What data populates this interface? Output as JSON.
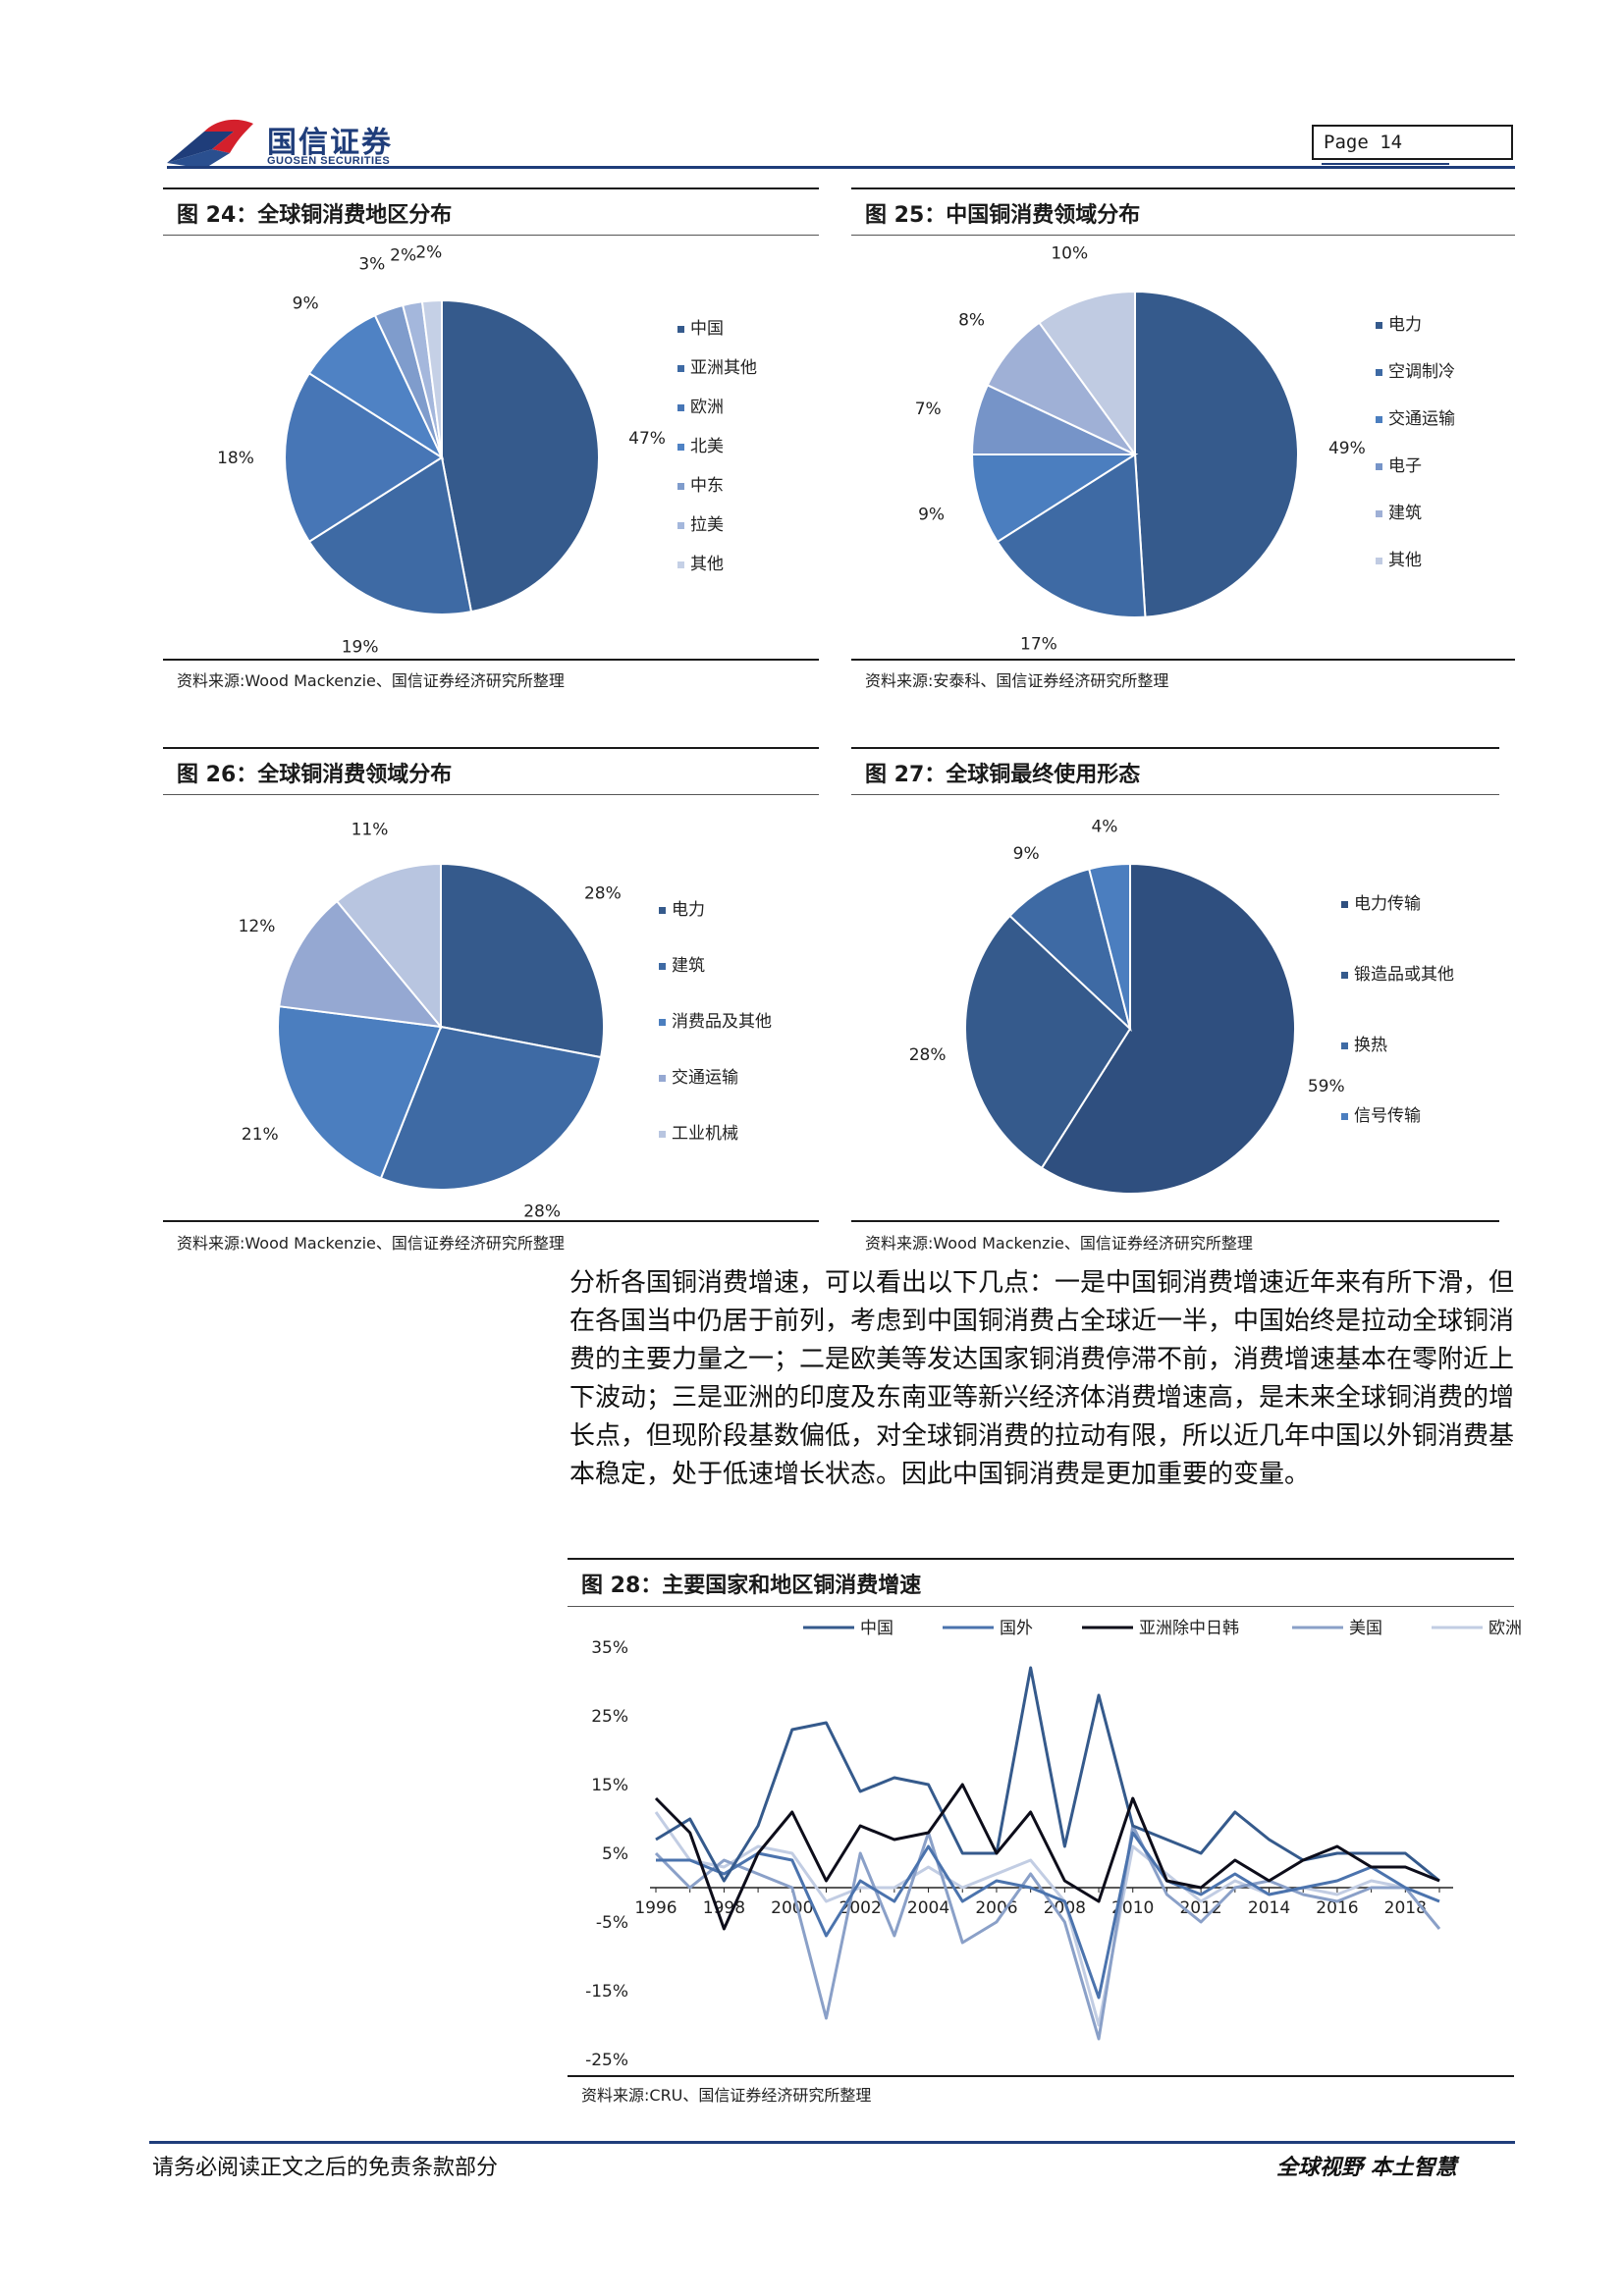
{
  "header": {
    "logo_cn": "国信证券",
    "logo_en": "GUOSEN SECURITIES",
    "page_label": "Page  14"
  },
  "colors": {
    "brand_blue": "#1f3d7a",
    "logo_red": "#d4202c",
    "pie_palette": [
      "#355a8c",
      "#3e6aa4",
      "#4b7ebf",
      "#6e94cb",
      "#96abd4",
      "#b3c2df",
      "#cbd5e8"
    ]
  },
  "figures": {
    "fig24": {
      "title": "图 24：全球铜消费地区分布",
      "source": "资料来源:Wood Mackenzie、国信证券经济研究所整理",
      "chart_data": {
        "type": "pie",
        "labels": [
          "中国",
          "亚洲其他",
          "欧洲",
          "北美",
          "中东",
          "拉美",
          "其他"
        ],
        "values": [
          47,
          19,
          18,
          9,
          3,
          2,
          2
        ],
        "value_labels": [
          "47%",
          "19%",
          "18%",
          "9%",
          "3%",
          "2%",
          "2%"
        ],
        "colors": [
          "#355a8c",
          "#3e6aa4",
          "#4776b6",
          "#4f82c4",
          "#7f9ccc",
          "#a4b7dc",
          "#c5d0e6"
        ],
        "legend_position": "right"
      }
    },
    "fig25": {
      "title": "图 25：中国铜消费领域分布",
      "source": "资料来源:安泰科、国信证券经济研究所整理",
      "chart_data": {
        "type": "pie",
        "labels": [
          "电力",
          "空调制冷",
          "交通运输",
          "电子",
          "建筑",
          "其他"
        ],
        "values": [
          49,
          17,
          9,
          7,
          8,
          10
        ],
        "value_labels": [
          "49%",
          "17%",
          "9%",
          "7%",
          "8%",
          "10%"
        ],
        "colors": [
          "#355a8c",
          "#3e6aa4",
          "#4b7ebf",
          "#7694c8",
          "#9fb0d6",
          "#c0cbe2"
        ],
        "legend_position": "right"
      }
    },
    "fig26": {
      "title": "图 26：全球铜消费领域分布",
      "source": "资料来源:Wood Mackenzie、国信证券经济研究所整理",
      "chart_data": {
        "type": "pie",
        "labels": [
          "电力",
          "建筑",
          "消费品及其他",
          "交通运输",
          "工业机械"
        ],
        "values": [
          28,
          28,
          21,
          12,
          11
        ],
        "value_labels": [
          "28%",
          "28%",
          "21%",
          "12%",
          "11%"
        ],
        "colors": [
          "#355a8c",
          "#3e6aa4",
          "#4b7ebf",
          "#95a8d2",
          "#b8c5e0"
        ],
        "legend_position": "right"
      }
    },
    "fig27": {
      "title": "图 27：全球铜最终使用形态",
      "source": "资料来源:Wood Mackenzie、国信证券经济研究所整理",
      "chart_data": {
        "type": "pie",
        "labels": [
          "电力传输",
          "锻造品或其他",
          "换热",
          "信号传输"
        ],
        "values": [
          59,
          28,
          9,
          4
        ],
        "value_labels": [
          "59%",
          "28%",
          "9%",
          "4%"
        ],
        "colors": [
          "#2f4f7f",
          "#355a8c",
          "#3e6aa4",
          "#4b7ebf"
        ],
        "legend_position": "right"
      }
    },
    "fig28": {
      "title": "图 28：主要国家和地区铜消费增速",
      "source": "资料来源:CRU、国信证券经济研究所整理",
      "chart_data": {
        "type": "line",
        "x": [
          1996,
          1997,
          1998,
          1999,
          2000,
          2001,
          2002,
          2003,
          2004,
          2005,
          2006,
          2007,
          2008,
          2009,
          2010,
          2011,
          2012,
          2013,
          2014,
          2015,
          2016,
          2017,
          2018,
          2019
        ],
        "x_tick_labels": [
          "1996",
          "1998",
          "2000",
          "2002",
          "2004",
          "2006",
          "2008",
          "2010",
          "2012",
          "2014",
          "2016",
          "2018"
        ],
        "y_tick_labels": [
          "35%",
          "25%",
          "15%",
          "5%",
          "-5%",
          "-15%",
          "-25%"
        ],
        "ylim": [
          -25,
          35
        ],
        "legend_position": "top",
        "series": [
          {
            "name": "中国",
            "color": "#355a8c",
            "values": [
              7,
              10,
              1,
              9,
              23,
              24,
              14,
              16,
              15,
              5,
              5,
              32,
              6,
              28,
              9,
              7,
              5,
              11,
              7,
              4,
              5,
              5,
              5,
              1
            ]
          },
          {
            "name": "国外",
            "color": "#4b73ad",
            "values": [
              4,
              4,
              2,
              5,
              4,
              -7,
              1,
              -2,
              6,
              -2,
              1,
              0,
              -2,
              -16,
              8,
              1,
              -1,
              2,
              -1,
              0,
              1,
              3,
              0,
              -2
            ]
          },
          {
            "name": "亚洲除中日韩",
            "color": "#0d0d1a",
            "values": [
              13,
              8,
              -6,
              5,
              11,
              1,
              9,
              7,
              8,
              15,
              5,
              11,
              1,
              -2,
              13,
              1,
              0,
              4,
              1,
              4,
              6,
              3,
              3,
              1
            ]
          },
          {
            "name": "美国",
            "color": "#8aa0c8",
            "values": [
              5,
              0,
              4,
              2,
              0,
              -19,
              5,
              -7,
              8,
              -8,
              -5,
              2,
              -5,
              -22,
              9,
              -1,
              -5,
              0,
              1,
              -1,
              -2,
              0,
              0,
              -6
            ]
          },
          {
            "name": "欧洲",
            "color": "#c2cde3",
            "values": [
              11,
              4,
              3,
              6,
              5,
              -2,
              0,
              0,
              3,
              0,
              2,
              4,
              -2,
              -20,
              6,
              2,
              -2,
              1,
              -1,
              0,
              -1,
              1,
              0,
              -2
            ]
          }
        ]
      }
    }
  },
  "body_paragraph": "分析各国铜消费增速，可以看出以下几点：一是中国铜消费增速近年来有所下滑，但在各国当中仍居于前列，考虑到中国铜消费占全球近一半，中国始终是拉动全球铜消费的主要力量之一；二是欧美等发达国家铜消费停滞不前，消费增速基本在零附近上下波动；三是亚洲的印度及东南亚等新兴经济体消费增速高，是未来全球铜消费的增长点，但现阶段基数偏低，对全球铜消费的拉动有限，所以近几年中国以外铜消费基本稳定，处于低速增长状态。因此中国铜消费是更加重要的变量。",
  "footer": {
    "disclaimer": "请务必阅读正文之后的免责条款部分",
    "slogan": "全球视野   本土智慧"
  }
}
